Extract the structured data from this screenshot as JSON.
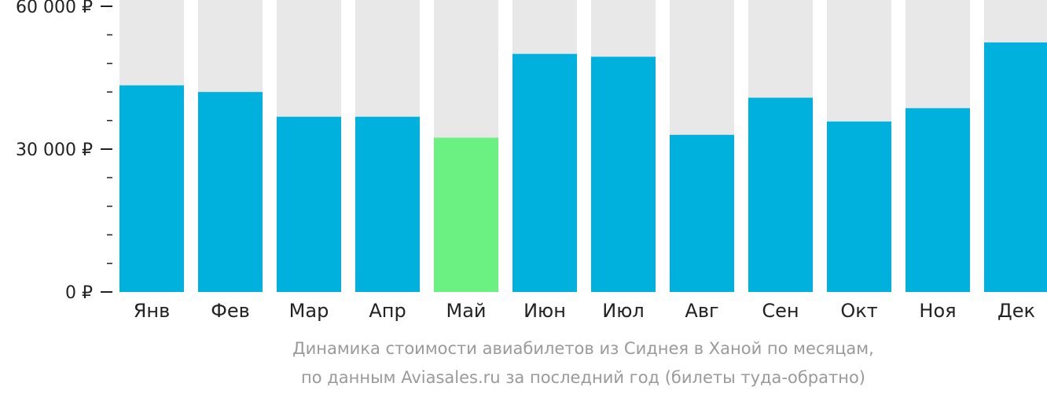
{
  "chart_data": {
    "type": "bar",
    "categories": [
      "Янв",
      "Фев",
      "Мар",
      "Апр",
      "Май",
      "Июн",
      "Июл",
      "Авг",
      "Сен",
      "Окт",
      "Ноя",
      "Дек"
    ],
    "values": [
      43400,
      42000,
      36800,
      36800,
      32400,
      50000,
      49400,
      33000,
      40800,
      35800,
      38600,
      52400
    ],
    "ylim": [
      0,
      60000
    ],
    "y_ticks": [
      {
        "value": 0,
        "label": "0 ₽"
      },
      {
        "value": 30000,
        "label": "30 000 ₽"
      },
      {
        "value": 60000,
        "label": "60 000 ₽"
      }
    ],
    "minor_tick_step": 6000,
    "highlight_category": "Май",
    "colors": {
      "bar": "#00b0dd",
      "highlight": "#6bf182",
      "background_bar": "#e8e8e8",
      "axis": "#222222",
      "caption": "#9a9a9a"
    },
    "grid": false,
    "legend": "none"
  },
  "caption": {
    "line1": "Динамика стоимости авиабилетов из Сиднея в Ханой по месяцам,",
    "line2": "по данным Aviasales.ru за последний год (билеты туда-обратно)"
  }
}
